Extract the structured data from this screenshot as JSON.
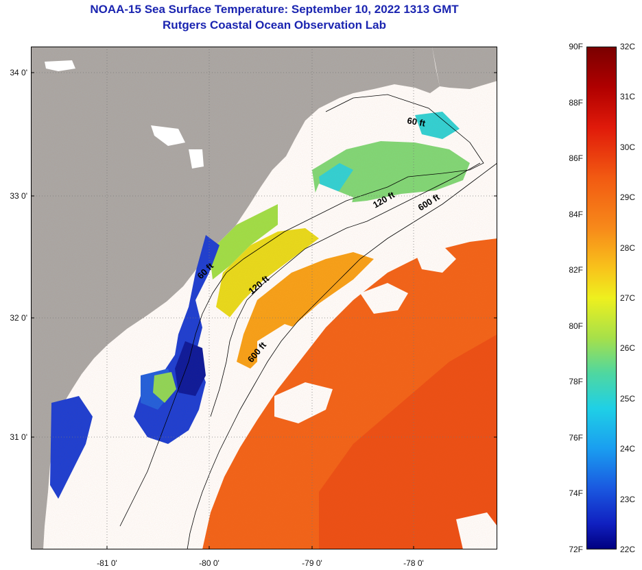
{
  "title": {
    "line1": "NOAA-15 Sea Surface Temperature:  September 10, 2022 1313 GMT",
    "line2": "Rutgers Coastal Ocean Observation Lab"
  },
  "map": {
    "latitude_labels": [
      {
        "lat": 34,
        "text": "34 0'"
      },
      {
        "lat": 33,
        "text": "33 0'"
      },
      {
        "lat": 32,
        "text": "32 0'"
      },
      {
        "lat": 31,
        "text": "31 0'"
      }
    ],
    "longitude_labels": [
      {
        "lon": -81,
        "text": "-81 0'"
      },
      {
        "lon": -80,
        "text": "-80 0'"
      },
      {
        "lon": -79,
        "text": "-79 0'"
      },
      {
        "lon": -78,
        "text": "-78 0'"
      }
    ],
    "contour_labels": [
      {
        "text": "60 ft"
      },
      {
        "text": "120 ft"
      },
      {
        "text": "600 ft"
      },
      {
        "text": "60 ft"
      },
      {
        "text": "120 ft"
      },
      {
        "text": "600 ft"
      }
    ]
  },
  "colorbar": {
    "fahrenheit_labels": [
      "90F",
      "88F",
      "86F",
      "84F",
      "82F",
      "80F",
      "78F",
      "76F",
      "74F",
      "72F"
    ],
    "celsius_labels": [
      "32C",
      "31C",
      "30C",
      "29C",
      "28C",
      "27C",
      "26C",
      "25C",
      "24C",
      "23C",
      "22C"
    ],
    "range_celsius": [
      22,
      32
    ],
    "range_fahrenheit": [
      72,
      90
    ]
  },
  "colors": {
    "title": "#1a24b0",
    "land": "#a9a9a9",
    "cloud": "#ffffff",
    "warm_water": "#f4661a",
    "cool_water": "#1b3fd6"
  }
}
